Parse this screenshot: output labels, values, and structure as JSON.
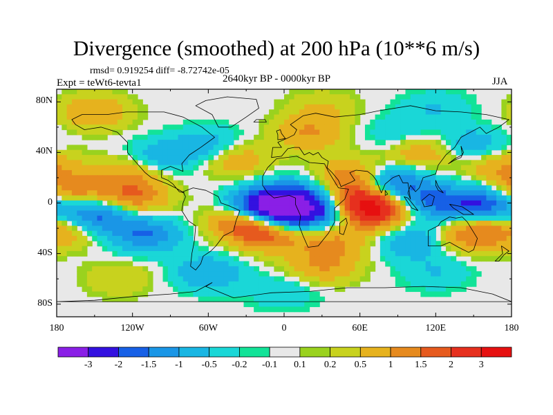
{
  "title": "Divergence (smoothed) at 200 hPa (10**6 m/s)",
  "stats": "rmsd= 0.919254 diff= -8.72742e-05",
  "experiment": "Expt = teWt6-tevta1",
  "period": "2640kyr BP - 0000kyr BP",
  "season": "JJA",
  "lat_labels": [
    "80N",
    "40N",
    "0",
    "40S",
    "80S"
  ],
  "lat_values": [
    80,
    40,
    0,
    -40,
    -80
  ],
  "lon_labels": [
    "180",
    "120W",
    "60W",
    "0",
    "60E",
    "120E",
    "180"
  ],
  "lon_values": [
    -180,
    -120,
    -60,
    0,
    60,
    120,
    180
  ],
  "colorbar": {
    "labels": [
      "-3",
      "-2",
      "-1.5",
      "-1",
      "-0.5",
      "-0.2",
      "-0.1",
      "0.1",
      "0.2",
      "0.5",
      "1",
      "1.5",
      "2",
      "3"
    ],
    "colors": [
      "#8a1fe6",
      "#3311e0",
      "#1760e6",
      "#1a96e6",
      "#19b6e3",
      "#1ad7d7",
      "#12e398",
      "#e8e8e8",
      "#9ad21e",
      "#c8d21e",
      "#e6b21e",
      "#e68a1e",
      "#e65a1e",
      "#e6301e",
      "#e61010"
    ]
  },
  "map_data": {
    "lon_range": [
      -180,
      180
    ],
    "lat_range": [
      -90,
      90
    ],
    "features": [
      {
        "name": "eq-atlantic-low",
        "lon": -15,
        "lat": -3,
        "value": -3
      },
      {
        "name": "eq-atlantic-low-2",
        "lon": 5,
        "lat": -10,
        "value": -2
      },
      {
        "name": "west-africa-low",
        "lon": 8,
        "lat": 5,
        "value": -1.5
      },
      {
        "name": "east-africa-low",
        "lon": 40,
        "lat": -5,
        "value": -2
      },
      {
        "name": "west-indian-high",
        "lon": 60,
        "lat": 0,
        "value": 3
      },
      {
        "name": "west-indian-high-2",
        "lon": 70,
        "lat": -8,
        "value": 2
      },
      {
        "name": "bay-of-bengal-low",
        "lon": 85,
        "lat": 15,
        "value": -2
      },
      {
        "name": "arabian-high",
        "lon": 55,
        "lat": 20,
        "value": 1.5
      },
      {
        "name": "maritime-low",
        "lon": 120,
        "lat": 0,
        "value": -1.5
      },
      {
        "name": "west-pacific-low",
        "lon": 160,
        "lat": 0,
        "value": -2
      },
      {
        "name": "east-pacific-low",
        "lon": -150,
        "lat": -10,
        "value": -2
      },
      {
        "name": "east-pacific-low-2",
        "lon": -110,
        "lat": -25,
        "value": -1.5
      },
      {
        "name": "pacific-high",
        "lon": -120,
        "lat": 5,
        "value": 1.5
      },
      {
        "name": "south-pacific-high",
        "lon": -170,
        "lat": -20,
        "value": 1
      },
      {
        "name": "south-atlantic-high",
        "lon": -30,
        "lat": -15,
        "value": 2
      },
      {
        "name": "south-atlantic-high-2",
        "lon": -10,
        "lat": -25,
        "value": 1.5
      },
      {
        "name": "south-africa-high",
        "lon": 40,
        "lat": -30,
        "value": 1
      },
      {
        "name": "south-indian-low",
        "lon": 100,
        "lat": -30,
        "value": -1
      },
      {
        "name": "australia-high",
        "lon": 150,
        "lat": -25,
        "value": 1.5
      },
      {
        "name": "north-pacific-high",
        "lon": 170,
        "lat": 30,
        "value": 1
      },
      {
        "name": "north-pacific-low",
        "lon": 150,
        "lat": 45,
        "value": -1
      },
      {
        "name": "north-america-low",
        "lon": -100,
        "lat": 35,
        "value": -1
      },
      {
        "name": "north-america-high",
        "lon": -120,
        "lat": 25,
        "value": 1
      },
      {
        "name": "north-atlantic-high",
        "lon": -40,
        "lat": 35,
        "value": 1
      },
      {
        "name": "north-atlantic-low",
        "lon": -60,
        "lat": 45,
        "value": -1
      },
      {
        "name": "europe-high",
        "lon": 20,
        "lat": 55,
        "value": 1
      },
      {
        "name": "siberia-low",
        "lon": 90,
        "lat": 55,
        "value": -0.5
      },
      {
        "name": "asia-high",
        "lon": 110,
        "lat": 40,
        "value": 1
      },
      {
        "name": "southern-ocean-low",
        "lon": -60,
        "lat": -55,
        "value": -1
      },
      {
        "name": "southern-ocean-high",
        "lon": 30,
        "lat": -50,
        "value": 1
      },
      {
        "name": "southern-ocean-low-2",
        "lon": 120,
        "lat": -55,
        "value": -0.5
      },
      {
        "name": "antarctic-high",
        "lon": -130,
        "lat": -60,
        "value": 0.5
      },
      {
        "name": "antarctic-low",
        "lon": 0,
        "lat": -70,
        "value": -0.5
      },
      {
        "name": "arctic-low",
        "lon": 120,
        "lat": 75,
        "value": -0.5
      },
      {
        "name": "arctic-high",
        "lon": 30,
        "lat": 75,
        "value": 0.5
      },
      {
        "name": "greenland-high",
        "lon": -150,
        "lat": 72,
        "value": 1
      },
      {
        "name": "pacific-high-mid",
        "lon": -170,
        "lat": 10,
        "value": 1.5
      }
    ]
  }
}
